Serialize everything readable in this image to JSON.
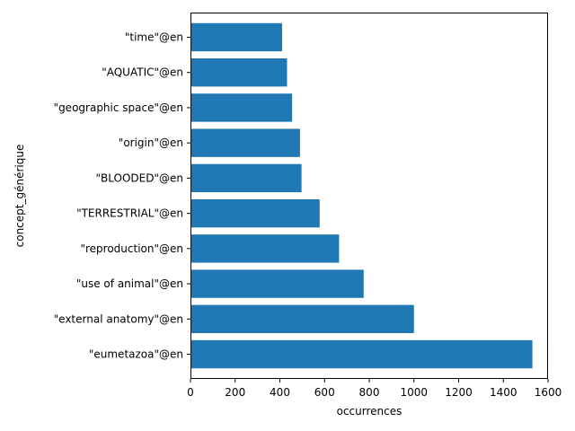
{
  "chart_data": {
    "type": "bar",
    "orientation": "horizontal",
    "categories": [
      "\"eumetazoa\"@en",
      "\"external anatomy\"@en",
      "\"use of animal\"@en",
      "\"reproduction\"@en",
      "\"TERRESTRIAL\"@en",
      "\"BLOODED\"@en",
      "\"origin\"@en",
      "\"geographic space\"@en",
      "\"AQUATIC\"@en",
      "\"time\"@en"
    ],
    "values": [
      1530,
      1000,
      775,
      665,
      578,
      497,
      490,
      455,
      432,
      410
    ],
    "xlabel": "occurrences",
    "ylabel": "concept_générique",
    "xlim": [
      0,
      1600
    ],
    "xticks": [
      "0",
      "200",
      "400",
      "600",
      "800",
      "1000",
      "1200",
      "1400",
      "1600"
    ],
    "grid": false,
    "bar_color": "#1f77b4"
  }
}
